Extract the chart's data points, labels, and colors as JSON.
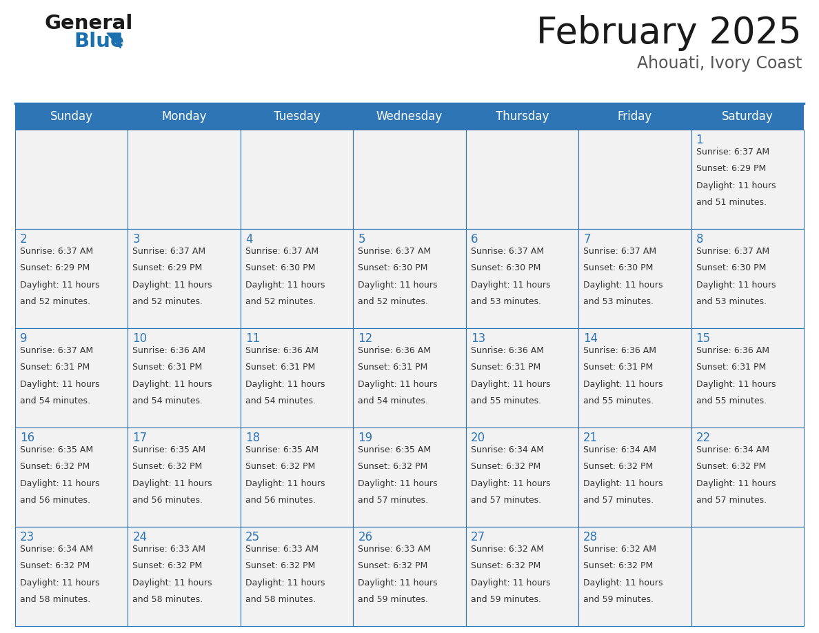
{
  "title": "February 2025",
  "subtitle": "Ahouati, Ivory Coast",
  "header_bg": "#2E75B6",
  "header_text_color": "#FFFFFF",
  "cell_bg": "#F0F0F0",
  "border_color": "#2E75B6",
  "day_names": [
    "Sunday",
    "Monday",
    "Tuesday",
    "Wednesday",
    "Thursday",
    "Friday",
    "Saturday"
  ],
  "days": [
    {
      "day": 1,
      "col": 6,
      "row": 0,
      "sunrise": "6:37 AM",
      "sunset": "6:29 PM",
      "daylight_h": "11 hours",
      "daylight_m": "and 51 minutes."
    },
    {
      "day": 2,
      "col": 0,
      "row": 1,
      "sunrise": "6:37 AM",
      "sunset": "6:29 PM",
      "daylight_h": "11 hours",
      "daylight_m": "and 52 minutes."
    },
    {
      "day": 3,
      "col": 1,
      "row": 1,
      "sunrise": "6:37 AM",
      "sunset": "6:29 PM",
      "daylight_h": "11 hours",
      "daylight_m": "and 52 minutes."
    },
    {
      "day": 4,
      "col": 2,
      "row": 1,
      "sunrise": "6:37 AM",
      "sunset": "6:30 PM",
      "daylight_h": "11 hours",
      "daylight_m": "and 52 minutes."
    },
    {
      "day": 5,
      "col": 3,
      "row": 1,
      "sunrise": "6:37 AM",
      "sunset": "6:30 PM",
      "daylight_h": "11 hours",
      "daylight_m": "and 52 minutes."
    },
    {
      "day": 6,
      "col": 4,
      "row": 1,
      "sunrise": "6:37 AM",
      "sunset": "6:30 PM",
      "daylight_h": "11 hours",
      "daylight_m": "and 53 minutes."
    },
    {
      "day": 7,
      "col": 5,
      "row": 1,
      "sunrise": "6:37 AM",
      "sunset": "6:30 PM",
      "daylight_h": "11 hours",
      "daylight_m": "and 53 minutes."
    },
    {
      "day": 8,
      "col": 6,
      "row": 1,
      "sunrise": "6:37 AM",
      "sunset": "6:30 PM",
      "daylight_h": "11 hours",
      "daylight_m": "and 53 minutes."
    },
    {
      "day": 9,
      "col": 0,
      "row": 2,
      "sunrise": "6:37 AM",
      "sunset": "6:31 PM",
      "daylight_h": "11 hours",
      "daylight_m": "and 54 minutes."
    },
    {
      "day": 10,
      "col": 1,
      "row": 2,
      "sunrise": "6:36 AM",
      "sunset": "6:31 PM",
      "daylight_h": "11 hours",
      "daylight_m": "and 54 minutes."
    },
    {
      "day": 11,
      "col": 2,
      "row": 2,
      "sunrise": "6:36 AM",
      "sunset": "6:31 PM",
      "daylight_h": "11 hours",
      "daylight_m": "and 54 minutes."
    },
    {
      "day": 12,
      "col": 3,
      "row": 2,
      "sunrise": "6:36 AM",
      "sunset": "6:31 PM",
      "daylight_h": "11 hours",
      "daylight_m": "and 54 minutes."
    },
    {
      "day": 13,
      "col": 4,
      "row": 2,
      "sunrise": "6:36 AM",
      "sunset": "6:31 PM",
      "daylight_h": "11 hours",
      "daylight_m": "and 55 minutes."
    },
    {
      "day": 14,
      "col": 5,
      "row": 2,
      "sunrise": "6:36 AM",
      "sunset": "6:31 PM",
      "daylight_h": "11 hours",
      "daylight_m": "and 55 minutes."
    },
    {
      "day": 15,
      "col": 6,
      "row": 2,
      "sunrise": "6:36 AM",
      "sunset": "6:31 PM",
      "daylight_h": "11 hours",
      "daylight_m": "and 55 minutes."
    },
    {
      "day": 16,
      "col": 0,
      "row": 3,
      "sunrise": "6:35 AM",
      "sunset": "6:32 PM",
      "daylight_h": "11 hours",
      "daylight_m": "and 56 minutes."
    },
    {
      "day": 17,
      "col": 1,
      "row": 3,
      "sunrise": "6:35 AM",
      "sunset": "6:32 PM",
      "daylight_h": "11 hours",
      "daylight_m": "and 56 minutes."
    },
    {
      "day": 18,
      "col": 2,
      "row": 3,
      "sunrise": "6:35 AM",
      "sunset": "6:32 PM",
      "daylight_h": "11 hours",
      "daylight_m": "and 56 minutes."
    },
    {
      "day": 19,
      "col": 3,
      "row": 3,
      "sunrise": "6:35 AM",
      "sunset": "6:32 PM",
      "daylight_h": "11 hours",
      "daylight_m": "and 57 minutes."
    },
    {
      "day": 20,
      "col": 4,
      "row": 3,
      "sunrise": "6:34 AM",
      "sunset": "6:32 PM",
      "daylight_h": "11 hours",
      "daylight_m": "and 57 minutes."
    },
    {
      "day": 21,
      "col": 5,
      "row": 3,
      "sunrise": "6:34 AM",
      "sunset": "6:32 PM",
      "daylight_h": "11 hours",
      "daylight_m": "and 57 minutes."
    },
    {
      "day": 22,
      "col": 6,
      "row": 3,
      "sunrise": "6:34 AM",
      "sunset": "6:32 PM",
      "daylight_h": "11 hours",
      "daylight_m": "and 57 minutes."
    },
    {
      "day": 23,
      "col": 0,
      "row": 4,
      "sunrise": "6:34 AM",
      "sunset": "6:32 PM",
      "daylight_h": "11 hours",
      "daylight_m": "and 58 minutes."
    },
    {
      "day": 24,
      "col": 1,
      "row": 4,
      "sunrise": "6:33 AM",
      "sunset": "6:32 PM",
      "daylight_h": "11 hours",
      "daylight_m": "and 58 minutes."
    },
    {
      "day": 25,
      "col": 2,
      "row": 4,
      "sunrise": "6:33 AM",
      "sunset": "6:32 PM",
      "daylight_h": "11 hours",
      "daylight_m": "and 58 minutes."
    },
    {
      "day": 26,
      "col": 3,
      "row": 4,
      "sunrise": "6:33 AM",
      "sunset": "6:32 PM",
      "daylight_h": "11 hours",
      "daylight_m": "and 59 minutes."
    },
    {
      "day": 27,
      "col": 4,
      "row": 4,
      "sunrise": "6:32 AM",
      "sunset": "6:32 PM",
      "daylight_h": "11 hours",
      "daylight_m": "and 59 minutes."
    },
    {
      "day": 28,
      "col": 5,
      "row": 4,
      "sunrise": "6:32 AM",
      "sunset": "6:32 PM",
      "daylight_h": "11 hours",
      "daylight_m": "and 59 minutes."
    }
  ],
  "num_rows": 5,
  "logo_general_color": "#1a1a1a",
  "logo_blue_color": "#1A6FAF",
  "logo_triangle_color": "#1A6FAF",
  "title_color": "#1a1a1a",
  "subtitle_color": "#555555",
  "day_number_color": "#2E75B6",
  "cell_text_color": "#333333",
  "title_fontsize": 38,
  "subtitle_fontsize": 17,
  "header_fontsize": 12,
  "day_number_fontsize": 12,
  "cell_text_fontsize": 9
}
